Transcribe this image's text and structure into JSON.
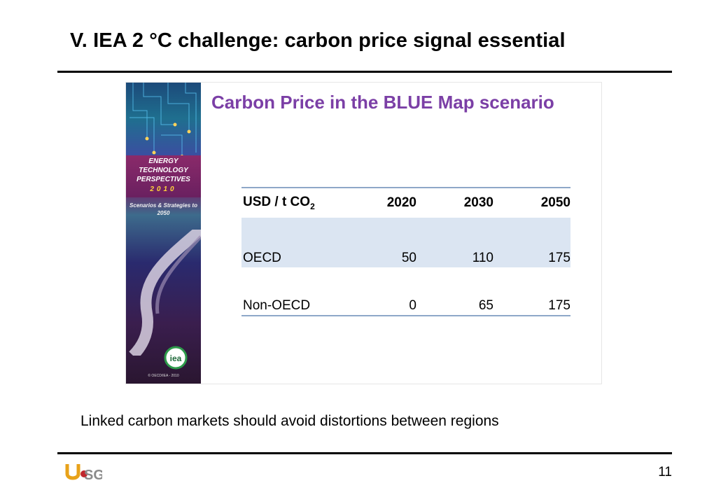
{
  "slide": {
    "title": "V. IEA 2 °C challenge: carbon price signal essential",
    "caption": "Linked carbon markets should avoid distortions between regions",
    "page_number": "11",
    "footer_logo_text": "USG"
  },
  "figure": {
    "heading": "Carbon Price in the BLUE Map scenario",
    "cover": {
      "title_lines": "ENERGY TECHNOLOGY PERSPECTIVES",
      "year": "2010",
      "subtitle": "Scenarios & Strategies to 2050",
      "logo_text": "iea",
      "copyright": "© OECD/IEA - 2010"
    },
    "table": {
      "unit_label": "USD / t CO",
      "unit_subscript": "2",
      "years": [
        "2020",
        "2030",
        "2050"
      ],
      "rows": [
        {
          "region": "OECD",
          "values": [
            "50",
            "110",
            "175"
          ]
        },
        {
          "region": "Non-OECD",
          "values": [
            "0",
            "65",
            "175"
          ]
        }
      ]
    }
  },
  "colors": {
    "heading": "#7b3fa6",
    "table_highlight": "#dbe5f2",
    "table_rule": "#8ea8c8"
  }
}
